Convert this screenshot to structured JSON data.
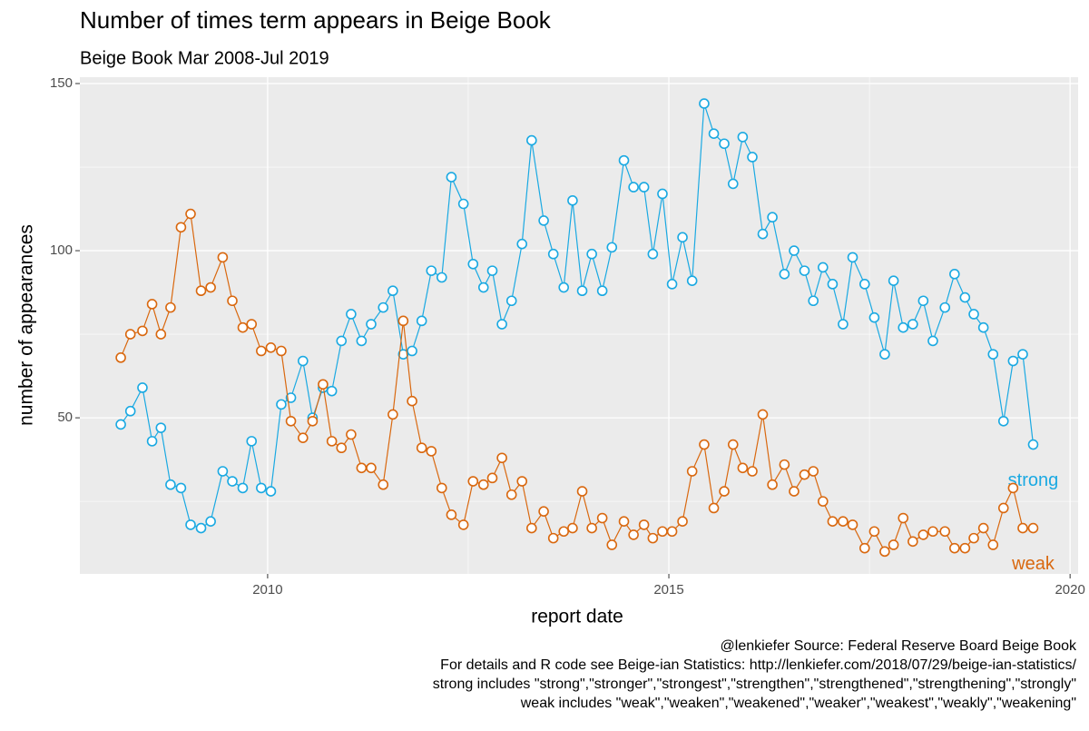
{
  "chart_data": {
    "type": "line",
    "title": "Number of times term appears in Beige Book",
    "subtitle": "Beige Book Mar 2008-Jul 2019",
    "x_label": "report date",
    "y_label": "number of appearances",
    "caption": [
      "@lenkiefer Source: Federal Reserve Board Beige Book",
      "For details and R code see Beige-ian Statistics: http://lenkiefer.com/2018/07/29/beige-ian-statistics/",
      "strong includes \"strong\",\"stronger\",\"strongest\",\"strengthen\",\"strengthened\",\"strengthening\",\"strongly\"",
      "weak includes  \"weak\",\"weaken\",\"weakened\",\"weaker\",\"weakest\",\"weakly\",\"weakening\""
    ],
    "x": [
      2008.17,
      2008.29,
      2008.44,
      2008.56,
      2008.67,
      2008.79,
      2008.92,
      2009.04,
      2009.17,
      2009.29,
      2009.44,
      2009.56,
      2009.69,
      2009.8,
      2009.92,
      2010.04,
      2010.17,
      2010.29,
      2010.44,
      2010.56,
      2010.69,
      2010.8,
      2010.92,
      2011.04,
      2011.17,
      2011.29,
      2011.44,
      2011.56,
      2011.69,
      2011.8,
      2011.92,
      2012.04,
      2012.17,
      2012.29,
      2012.44,
      2012.56,
      2012.69,
      2012.8,
      2012.92,
      2013.04,
      2013.17,
      2013.29,
      2013.44,
      2013.56,
      2013.69,
      2013.8,
      2013.92,
      2014.04,
      2014.17,
      2014.29,
      2014.44,
      2014.56,
      2014.69,
      2014.8,
      2014.92,
      2015.04,
      2015.17,
      2015.29,
      2015.44,
      2015.56,
      2015.69,
      2015.8,
      2015.92,
      2016.04,
      2016.17,
      2016.29,
      2016.44,
      2016.56,
      2016.69,
      2016.8,
      2016.92,
      2017.04,
      2017.17,
      2017.29,
      2017.44,
      2017.56,
      2017.69,
      2017.8,
      2017.92,
      2018.04,
      2018.17,
      2018.29,
      2018.44,
      2018.56,
      2018.69,
      2018.8,
      2018.92,
      2019.04,
      2019.17,
      2019.29,
      2019.41,
      2019.54
    ],
    "series": [
      {
        "name": "strong",
        "color": "#1aa9e2",
        "values": [
          48,
          52,
          59,
          43,
          47,
          30,
          29,
          18,
          17,
          19,
          34,
          31,
          29,
          43,
          29,
          28,
          54,
          56,
          67,
          50,
          59,
          58,
          73,
          81,
          73,
          78,
          83,
          88,
          69,
          70,
          79,
          94,
          92,
          122,
          114,
          96,
          89,
          94,
          78,
          85,
          102,
          133,
          109,
          99,
          89,
          115,
          88,
          99,
          88,
          101,
          127,
          119,
          119,
          99,
          117,
          90,
          104,
          91,
          144,
          135,
          132,
          120,
          134,
          128,
          105,
          110,
          93,
          100,
          94,
          85,
          95,
          90,
          78,
          98,
          90,
          80,
          69,
          91,
          77,
          78,
          85,
          73,
          83,
          93,
          86,
          81,
          77,
          69,
          49,
          67,
          69,
          42
        ]
      },
      {
        "name": "weak",
        "color": "#d9680f",
        "values": [
          68,
          75,
          76,
          84,
          75,
          83,
          107,
          111,
          88,
          89,
          98,
          85,
          77,
          78,
          70,
          71,
          70,
          49,
          44,
          49,
          60,
          43,
          41,
          45,
          35,
          35,
          30,
          51,
          79,
          55,
          41,
          40,
          29,
          21,
          18,
          31,
          30,
          32,
          38,
          27,
          31,
          17,
          22,
          14,
          16,
          17,
          28,
          17,
          20,
          12,
          19,
          15,
          18,
          14,
          16,
          16,
          19,
          34,
          42,
          23,
          28,
          42,
          35,
          34,
          51,
          30,
          36,
          28,
          33,
          34,
          25,
          19,
          19,
          18,
          11,
          16,
          10,
          12,
          20,
          13,
          15,
          16,
          16,
          11,
          11,
          14,
          17,
          12,
          23,
          29,
          17,
          17
        ]
      }
    ],
    "xlim": [
      2007.66,
      2020.1
    ],
    "ylim": [
      3.3,
      151.9
    ],
    "xticks": [
      2010,
      2015,
      2020
    ],
    "yticks": [
      50,
      100,
      150
    ],
    "x_minor_ticks": [
      2012.5,
      2017.5
    ],
    "y_minor_ticks": [
      25,
      75,
      125
    ],
    "grid": true
  }
}
